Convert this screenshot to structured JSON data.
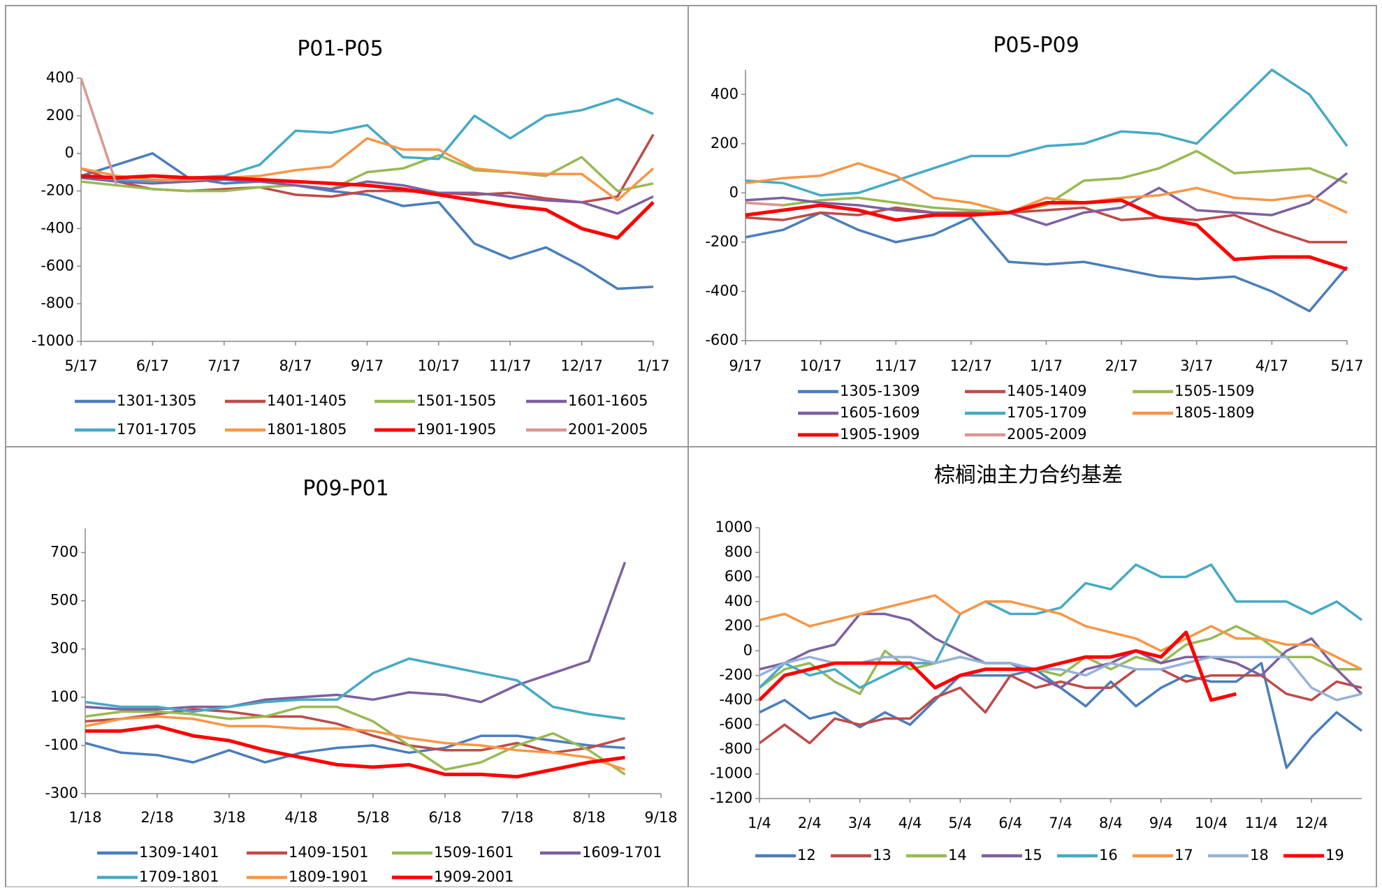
{
  "chart_data": [
    {
      "type": "line",
      "title": "P01-P05",
      "categories": [
        "5/17",
        null,
        "6/17",
        null,
        "7/17",
        null,
        "8/17",
        null,
        "9/17",
        null,
        "10/17",
        null,
        "11/17",
        null,
        "12/17",
        null,
        "1/17"
      ],
      "ylim": [
        -1000,
        400
      ],
      "yticks": [
        -1000,
        -800,
        -600,
        -400,
        -200,
        0,
        200,
        400
      ],
      "series": [
        {
          "name": "1301-1305",
          "color": "#4A7EBB",
          "values": [
            -120,
            -60,
            0,
            -130,
            -160,
            -150,
            -170,
            -200,
            -220,
            -280,
            -260,
            -480,
            -560,
            -500,
            -600,
            -720,
            -710
          ]
        },
        {
          "name": "1401-1405",
          "color": "#BE4B48",
          "values": [
            -80,
            -150,
            -190,
            -200,
            -190,
            -180,
            -220,
            -230,
            -200,
            -200,
            -210,
            -220,
            -210,
            -240,
            -260,
            -230,
            100
          ]
        },
        {
          "name": "1501-1505",
          "color": "#98B954",
          "values": [
            -150,
            -170,
            -190,
            -200,
            -200,
            -180,
            -170,
            -190,
            -100,
            -80,
            -10,
            -90,
            -100,
            -120,
            -20,
            -200,
            -160
          ]
        },
        {
          "name": "1601-1605",
          "color": "#7D60A0",
          "values": [
            -130,
            -150,
            -160,
            -150,
            -140,
            -150,
            -170,
            -190,
            -150,
            -170,
            -210,
            -210,
            -230,
            -250,
            -260,
            -320,
            -230
          ]
        },
        {
          "name": "1701-1705",
          "color": "#46AAC5",
          "values": [
            -120,
            -140,
            -150,
            -130,
            -120,
            -60,
            120,
            110,
            150,
            -20,
            -30,
            200,
            80,
            200,
            230,
            290,
            210
          ]
        },
        {
          "name": "1801-1805",
          "color": "#F79646",
          "values": [
            -80,
            -120,
            -140,
            -140,
            -130,
            -120,
            -90,
            -70,
            80,
            20,
            20,
            -80,
            -100,
            -110,
            -110,
            -250,
            -80
          ]
        },
        {
          "name": "1901-1905",
          "color": "#FF0000",
          "values": [
            -120,
            -130,
            -120,
            -130,
            -130,
            -140,
            -150,
            -160,
            -170,
            -190,
            -220,
            -250,
            -280,
            -300,
            -400,
            -450,
            -260
          ]
        },
        {
          "name": "2001-2005",
          "color": "#D99694",
          "values": [
            400,
            -170,
            null,
            null,
            null,
            null,
            null,
            null,
            null,
            null,
            null,
            null,
            null,
            null,
            null,
            null,
            null
          ]
        }
      ]
    },
    {
      "type": "line",
      "title": "P05-P09",
      "categories": [
        "9/17",
        null,
        "10/17",
        null,
        "11/17",
        null,
        "12/17",
        null,
        "1/17",
        null,
        "2/17",
        null,
        "3/17",
        null,
        "4/17",
        null,
        "5/17"
      ],
      "ylim": [
        -600,
        500
      ],
      "yticks": [
        -600,
        -400,
        -200,
        0,
        200,
        400
      ],
      "series": [
        {
          "name": "1305-1309",
          "color": "#4A7EBB",
          "values": [
            -180,
            -150,
            -80,
            -150,
            -200,
            -170,
            -100,
            -280,
            -290,
            -280,
            -310,
            -340,
            -350,
            -340,
            -400,
            -480,
            -300
          ]
        },
        {
          "name": "1405-1409",
          "color": "#BE4B48",
          "values": [
            -100,
            -110,
            -80,
            -90,
            -60,
            -80,
            -80,
            -80,
            -70,
            -60,
            -110,
            -100,
            -110,
            -90,
            -150,
            -200,
            -200
          ]
        },
        {
          "name": "1505-1509",
          "color": "#98B954",
          "values": [
            -40,
            -50,
            -30,
            -20,
            -40,
            -60,
            -70,
            -80,
            -50,
            50,
            60,
            100,
            170,
            80,
            90,
            100,
            40
          ]
        },
        {
          "name": "1605-1609",
          "color": "#7D60A0",
          "values": [
            -30,
            -20,
            -40,
            -50,
            -70,
            -80,
            -90,
            -80,
            -130,
            -80,
            -60,
            20,
            -70,
            -80,
            -90,
            -40,
            80
          ]
        },
        {
          "name": "1705-1709",
          "color": "#46AAC5",
          "values": [
            50,
            40,
            -10,
            0,
            50,
            100,
            150,
            150,
            190,
            200,
            250,
            240,
            200,
            350,
            500,
            400,
            190
          ]
        },
        {
          "name": "1805-1809",
          "color": "#F79646",
          "values": [
            40,
            60,
            70,
            120,
            70,
            -20,
            -40,
            -80,
            -20,
            -40,
            -20,
            -10,
            20,
            -20,
            -30,
            -10,
            -80
          ]
        },
        {
          "name": "1905-1909",
          "color": "#FF0000",
          "values": [
            -90,
            -70,
            -50,
            -70,
            -110,
            -90,
            -90,
            -80,
            -40,
            -40,
            -30,
            -100,
            -130,
            -270,
            -260,
            -260,
            -310
          ]
        },
        {
          "name": "2005-2009",
          "color": "#D99694",
          "values": [
            -40,
            -50,
            null,
            null,
            null,
            null,
            null,
            null,
            null,
            null,
            null,
            null,
            null,
            null,
            null,
            null,
            null
          ]
        }
      ]
    },
    {
      "type": "line",
      "title": "P09-P01",
      "categories": [
        "1/18",
        null,
        "2/18",
        null,
        "3/18",
        null,
        "4/18",
        null,
        "5/18",
        null,
        "6/18",
        null,
        "7/18",
        null,
        "8/18",
        null,
        "9/18"
      ],
      "ylim": [
        -300,
        800
      ],
      "yticks": [
        -300,
        -100,
        100,
        300,
        500,
        700
      ],
      "series": [
        {
          "name": "1309-1401",
          "color": "#4A7EBB",
          "values": [
            -90,
            -130,
            -140,
            -170,
            -120,
            -170,
            -130,
            -110,
            -100,
            -130,
            -110,
            -60,
            -60,
            -80,
            -100,
            -110,
            null
          ]
        },
        {
          "name": "1409-1501",
          "color": "#BE4B48",
          "values": [
            0,
            10,
            30,
            50,
            40,
            20,
            20,
            -10,
            -60,
            -100,
            -120,
            -120,
            -90,
            -130,
            -110,
            -70,
            null
          ]
        },
        {
          "name": "1509-1601",
          "color": "#98B954",
          "values": [
            20,
            40,
            40,
            30,
            10,
            20,
            60,
            60,
            0,
            -100,
            -200,
            -170,
            -100,
            -50,
            -120,
            -220,
            null
          ]
        },
        {
          "name": "1609-1701",
          "color": "#7D60A0",
          "values": [
            60,
            50,
            50,
            60,
            60,
            90,
            100,
            110,
            90,
            120,
            110,
            80,
            150,
            200,
            250,
            660,
            null
          ]
        },
        {
          "name": "1709-1801",
          "color": "#46AAC5",
          "values": [
            80,
            60,
            60,
            40,
            60,
            80,
            90,
            90,
            200,
            260,
            230,
            200,
            170,
            60,
            30,
            10,
            null
          ]
        },
        {
          "name": "1809-1901",
          "color": "#F79646",
          "values": [
            -20,
            10,
            20,
            10,
            -20,
            -20,
            -30,
            -30,
            -40,
            -70,
            -90,
            -100,
            -120,
            -130,
            -150,
            -200,
            null
          ]
        },
        {
          "name": "1909-2001",
          "color": "#FF0000",
          "values": [
            -40,
            -40,
            -20,
            -60,
            -80,
            -120,
            -150,
            -180,
            -190,
            -180,
            -220,
            -220,
            -230,
            -200,
            -170,
            -150,
            null
          ]
        }
      ]
    },
    {
      "type": "line",
      "title": "棕榈油主力合约基差",
      "categories": [
        "1/4",
        null,
        "2/4",
        null,
        "3/4",
        null,
        "4/4",
        null,
        "5/4",
        null,
        "6/4",
        null,
        "7/4",
        null,
        "8/4",
        null,
        "9/4",
        null,
        "10/4",
        null,
        "11/4",
        null,
        "12/4",
        null,
        null
      ],
      "ylim": [
        -1200,
        1000
      ],
      "yticks": [
        -1200,
        -1000,
        -800,
        -600,
        -400,
        -200,
        0,
        200,
        400,
        600,
        800,
        1000
      ],
      "series": [
        {
          "name": "12",
          "color": "#4A7EBB",
          "values": [
            -500,
            -400,
            -550,
            -500,
            -620,
            -500,
            -600,
            -400,
            -200,
            -200,
            -200,
            -150,
            -300,
            -450,
            -250,
            -450,
            -300,
            -200,
            -250,
            -250,
            -100,
            -950,
            -700,
            -500,
            -650
          ]
        },
        {
          "name": "13",
          "color": "#BE4B48",
          "values": [
            -750,
            -600,
            -750,
            -550,
            -600,
            -550,
            -550,
            -380,
            -300,
            -500,
            -200,
            -300,
            -250,
            -300,
            -300,
            -150,
            -150,
            -250,
            -200,
            -200,
            -200,
            -350,
            -400,
            -250,
            -300
          ]
        },
        {
          "name": "14",
          "color": "#98B954",
          "values": [
            -300,
            -150,
            -100,
            -250,
            -350,
            0,
            -150,
            -100,
            -50,
            -100,
            -100,
            -150,
            -200,
            -50,
            -150,
            -50,
            -100,
            50,
            100,
            200,
            100,
            -50,
            -50,
            -150,
            -150
          ]
        },
        {
          "name": "15",
          "color": "#7D60A0",
          "values": [
            -150,
            -100,
            0,
            50,
            300,
            300,
            250,
            100,
            0,
            -100,
            -100,
            -200,
            -300,
            -150,
            -100,
            0,
            -100,
            -50,
            -50,
            -100,
            -200,
            0,
            100,
            -150,
            -350
          ]
        },
        {
          "name": "16",
          "color": "#46AAC5",
          "values": [
            -300,
            -100,
            -200,
            -150,
            -300,
            -200,
            -100,
            -100,
            300,
            400,
            300,
            300,
            350,
            550,
            500,
            700,
            600,
            600,
            700,
            400,
            400,
            400,
            300,
            400,
            250
          ]
        },
        {
          "name": "17",
          "color": "#F79646",
          "values": [
            250,
            300,
            200,
            250,
            300,
            350,
            400,
            450,
            300,
            400,
            400,
            350,
            300,
            200,
            150,
            100,
            0,
            100,
            200,
            100,
            100,
            50,
            50,
            -50,
            -150
          ]
        },
        {
          "name": "18",
          "color": "#95B3D7",
          "values": [
            -200,
            -100,
            -50,
            -100,
            -100,
            -50,
            -50,
            -100,
            -50,
            -100,
            -100,
            -150,
            -150,
            -200,
            -100,
            -150,
            -150,
            -100,
            -50,
            -50,
            -50,
            -50,
            -300,
            -400,
            -350
          ]
        },
        {
          "name": "19",
          "color": "#FF0000",
          "values": [
            -400,
            -200,
            -150,
            -100,
            -100,
            -100,
            -100,
            -300,
            -200,
            -150,
            -150,
            -150,
            -100,
            -50,
            -50,
            0,
            -50,
            150,
            -400,
            -350,
            null,
            null,
            null,
            null,
            null
          ]
        }
      ]
    }
  ]
}
